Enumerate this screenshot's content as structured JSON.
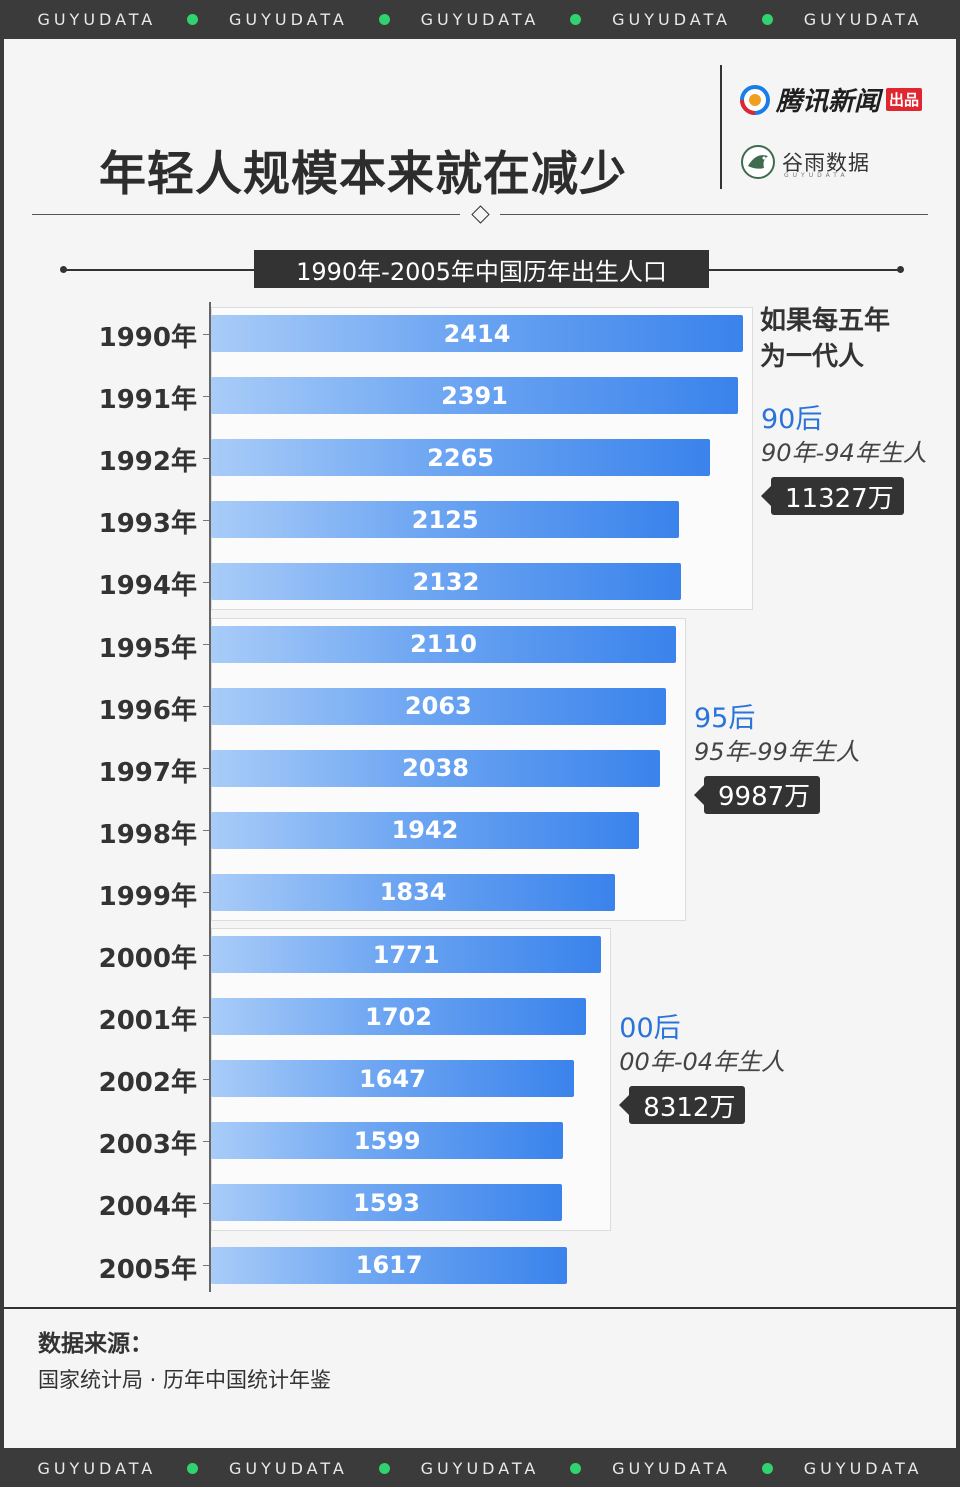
{
  "brand_strip": [
    "GUYUDATA",
    "GUYUDATA",
    "GUYUDATA",
    "GUYUDATA",
    "GUYUDATA"
  ],
  "header": {
    "title": "年轻人规模本来就在减少",
    "logo_primary": "腾讯新闻",
    "logo_primary_badge": "出品",
    "logo_secondary": "谷雨数据",
    "logo_secondary_sub": "GUYUDATA"
  },
  "note": [
    "如果每五年",
    "为一代人"
  ],
  "chart_data": {
    "type": "bar",
    "orientation": "horizontal",
    "title": "1990年-2005年中国历年出生人口",
    "categories": [
      "1990年",
      "1991年",
      "1992年",
      "1993年",
      "1994年",
      "1995年",
      "1996年",
      "1997年",
      "1998年",
      "1999年",
      "2000年",
      "2001年",
      "2002年",
      "2003年",
      "2004年",
      "2005年"
    ],
    "values": [
      2414,
      2391,
      2265,
      2125,
      2132,
      2110,
      2063,
      2038,
      1942,
      1834,
      1771,
      1702,
      1647,
      1599,
      1593,
      1617
    ],
    "xlim": [
      0,
      2414
    ],
    "grid": false,
    "groups": [
      {
        "name": "90后",
        "range": "90年-94年生人",
        "total": "11327万"
      },
      {
        "name": "95后",
        "range": "95年-99年生人",
        "total": "9987万"
      },
      {
        "name": "00后",
        "range": "00年-04年生人",
        "total": "8312万"
      }
    ]
  },
  "source": {
    "label": "数据来源：",
    "text": "国家统计局 · 历年中国统计年鉴"
  },
  "colors": {
    "bar_start": "#a9ccf8",
    "bar_end": "#3a83ec",
    "accent_blue": "#2a73d8",
    "dark": "#333333",
    "dot_green": "#2fd36f"
  }
}
